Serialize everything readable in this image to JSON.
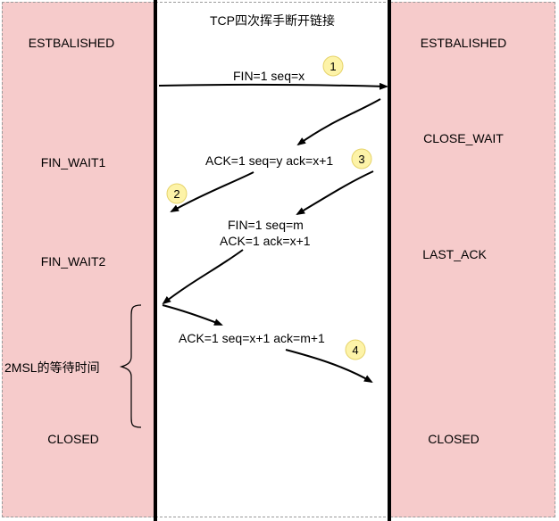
{
  "diagram": {
    "title": "TCP四次挥手断开链接",
    "client_states": {
      "s1": "ESTBALISHED",
      "s2": "FIN_WAIT1",
      "s3": "FIN_WAIT2",
      "wait": "2MSL的等待时间",
      "s4": "CLOSED"
    },
    "server_states": {
      "s1": "ESTBALISHED",
      "s2": "CLOSE_WAIT",
      "s3": "LAST_ACK",
      "s4": "CLOSED"
    },
    "messages": {
      "m1": "FIN=1 seq=x",
      "m2": "ACK=1 seq=y ack=x+1",
      "m3_line1": "FIN=1 seq=m",
      "m3_line2": "ACK=1 ack=x+1",
      "m4": "ACK=1 seq=x+1 ack=m+1"
    },
    "step_badges": {
      "b1": "1",
      "b2": "2",
      "b3": "3",
      "b4": "4"
    },
    "colors": {
      "side_panel": "#f6cbcb",
      "badge_fill": "#fdf3a8",
      "badge_stroke": "#e6d36a"
    }
  }
}
